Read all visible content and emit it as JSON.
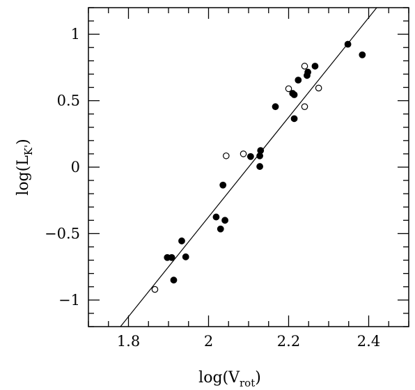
{
  "chart_data": {
    "type": "scatter",
    "title": "",
    "xlabel": "log(V_rot)",
    "ylabel": "log(L_K')",
    "xlabel_parts": {
      "main_prefix": "log(V",
      "subscript": "rot",
      "main_suffix": ")"
    },
    "ylabel_parts": {
      "main_prefix": "log(L",
      "subscript": "K'",
      "main_suffix": ")"
    },
    "xlim": [
      1.7,
      2.5
    ],
    "ylim": [
      -1.2,
      1.2
    ],
    "x_ticks": [
      {
        "value": 1.8,
        "label": "1.8"
      },
      {
        "value": 2.0,
        "label": "2"
      },
      {
        "value": 2.2,
        "label": "2.2"
      },
      {
        "value": 2.4,
        "label": "2.4"
      }
    ],
    "y_ticks": [
      {
        "value": -1,
        "label": "−1"
      },
      {
        "value": -0.5,
        "label": "−0.5"
      },
      {
        "value": 0,
        "label": "0"
      },
      {
        "value": 0.5,
        "label": "0.5"
      },
      {
        "value": 1,
        "label": "1"
      }
    ],
    "x_minor_step": 0.05,
    "y_minor_step": 0.1,
    "grid": false,
    "series": [
      {
        "marker": "filled-circle",
        "points": [
          [
            1.897,
            -0.68
          ],
          [
            1.908,
            -0.68
          ],
          [
            1.913,
            -0.85
          ],
          [
            1.933,
            -0.555
          ],
          [
            1.943,
            -0.675
          ],
          [
            2.019,
            -0.375
          ],
          [
            2.03,
            -0.465
          ],
          [
            2.036,
            -0.135
          ],
          [
            2.041,
            -0.4
          ],
          [
            2.105,
            0.08
          ],
          [
            2.128,
            0.005
          ],
          [
            2.128,
            0.085
          ],
          [
            2.13,
            0.125
          ],
          [
            2.167,
            0.455
          ],
          [
            2.21,
            0.555
          ],
          [
            2.214,
            0.545
          ],
          [
            2.214,
            0.365
          ],
          [
            2.224,
            0.655
          ],
          [
            2.246,
            0.69
          ],
          [
            2.248,
            0.715
          ],
          [
            2.266,
            0.76
          ],
          [
            2.348,
            0.925
          ],
          [
            2.384,
            0.845
          ]
        ]
      },
      {
        "marker": "open-circle",
        "points": [
          [
            1.866,
            -0.92
          ],
          [
            2.044,
            0.085
          ],
          [
            2.087,
            0.1
          ],
          [
            2.2,
            0.59
          ],
          [
            2.24,
            0.455
          ],
          [
            2.24,
            0.76
          ],
          [
            2.275,
            0.595
          ]
        ]
      }
    ],
    "fit_line": {
      "x": [
        1.78,
        2.42
      ],
      "y": [
        -1.2,
        1.2
      ]
    }
  }
}
